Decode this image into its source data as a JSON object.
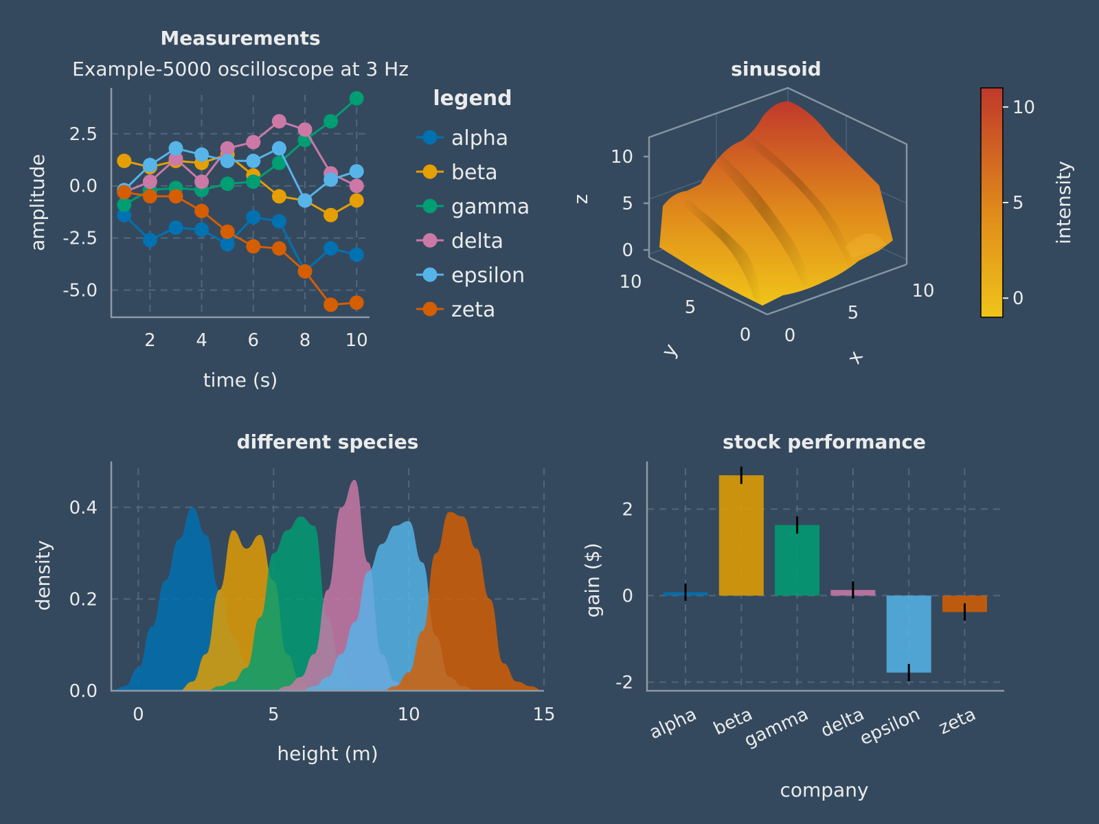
{
  "colors": {
    "background": "#34495e",
    "text": "#ebebeb",
    "palette": [
      "#0072b2",
      "#e69f00",
      "#009e73",
      "#cc79a7",
      "#56b4e9",
      "#d55e00"
    ]
  },
  "chart_data": [
    {
      "type": "line",
      "title": "Measurements",
      "subtitle": "Example-5000 oscilloscope at 3 Hz",
      "xlabel": "time (s)",
      "ylabel": "amplitude",
      "xlim": [
        0.5,
        10.5
      ],
      "ylim": [
        -6.3,
        4.7
      ],
      "xticks": [
        2,
        4,
        6,
        8,
        10
      ],
      "yticks": [
        -5.0,
        -2.5,
        0.0,
        2.5
      ],
      "ytick_labels": [
        "-5.0",
        "-2.5",
        "0.0",
        "2.5"
      ],
      "grid": true,
      "legend": {
        "title": "legend",
        "placement": "right"
      },
      "x": [
        1,
        2,
        3,
        4,
        5,
        6,
        7,
        8,
        9,
        10
      ],
      "series": [
        {
          "name": "alpha",
          "values": [
            -1.4,
            -2.6,
            -2.0,
            -2.1,
            -2.8,
            -1.5,
            -1.7,
            -4.1,
            -3.0,
            -3.3
          ]
        },
        {
          "name": "beta",
          "values": [
            1.2,
            0.9,
            1.2,
            1.1,
            1.5,
            0.5,
            -0.5,
            -0.7,
            -1.4,
            -0.7
          ]
        },
        {
          "name": "gamma",
          "values": [
            -0.9,
            -0.2,
            -0.1,
            -0.2,
            0.1,
            0.2,
            1.1,
            2.2,
            3.1,
            4.2
          ]
        },
        {
          "name": "delta",
          "values": [
            -0.3,
            0.2,
            1.3,
            0.2,
            1.8,
            2.1,
            3.1,
            2.7,
            0.6,
            0.0
          ]
        },
        {
          "name": "epsilon",
          "values": [
            -0.2,
            1.0,
            1.8,
            1.5,
            1.2,
            1.2,
            1.8,
            -0.7,
            0.3,
            0.7
          ]
        },
        {
          "name": "zeta",
          "values": [
            -0.3,
            -0.5,
            -0.5,
            -1.2,
            -2.2,
            -2.9,
            -3.0,
            -4.1,
            -5.7,
            -5.6
          ]
        }
      ]
    },
    {
      "type": "surface",
      "title": "sinusoid",
      "xlabel": "x",
      "ylabel": "y",
      "zlabel": "z",
      "xlim": [
        0,
        10
      ],
      "ylim": [
        0,
        10
      ],
      "zlim": [
        0,
        10
      ],
      "xticks": [
        0,
        5,
        10
      ],
      "yticks": [
        0,
        5,
        10
      ],
      "zticks": [
        0,
        5,
        10
      ],
      "colorbar": {
        "label": "intensity",
        "range": [
          -1,
          11
        ],
        "ticks": [
          0,
          5,
          10
        ],
        "colors": [
          "#f0c419",
          "#e08b1b",
          "#c0392b"
        ]
      }
    },
    {
      "type": "area",
      "title": "different species",
      "xlabel": "height (m)",
      "ylabel": "density",
      "xlim": [
        -1,
        15
      ],
      "ylim": [
        0,
        0.5
      ],
      "xticks": [
        0,
        5,
        10,
        15
      ],
      "yticks": [
        0.0,
        0.2,
        0.4
      ],
      "ytick_labels": [
        "0.0",
        "0.2",
        "0.4"
      ],
      "grid": true,
      "x": [
        -1,
        -0.5,
        0,
        0.5,
        1,
        1.5,
        2,
        2.5,
        3,
        3.5,
        4,
        4.5,
        5,
        5.5,
        6,
        6.5,
        7,
        7.5,
        8,
        8.5,
        9,
        9.5,
        10,
        10.5,
        11,
        11.5,
        12,
        12.5,
        13,
        13.5,
        14,
        14.5,
        15
      ],
      "series": [
        {
          "name": "alpha",
          "values": [
            0,
            0.01,
            0.05,
            0.14,
            0.24,
            0.33,
            0.4,
            0.34,
            0.22,
            0.12,
            0.06,
            0.02,
            0.01,
            0,
            0,
            0,
            0,
            0,
            0,
            0,
            0,
            0,
            0,
            0,
            0,
            0,
            0,
            0,
            0,
            0,
            0,
            0,
            0
          ]
        },
        {
          "name": "beta",
          "values": [
            0,
            0,
            0,
            0,
            0,
            0,
            0.02,
            0.08,
            0.22,
            0.35,
            0.31,
            0.34,
            0.24,
            0.08,
            0.02,
            0,
            0,
            0,
            0,
            0,
            0,
            0,
            0,
            0,
            0,
            0,
            0,
            0,
            0,
            0,
            0,
            0,
            0
          ]
        },
        {
          "name": "gamma",
          "values": [
            0,
            0,
            0,
            0,
            0,
            0,
            0,
            0,
            0.01,
            0.02,
            0.05,
            0.16,
            0.3,
            0.35,
            0.38,
            0.36,
            0.16,
            0.05,
            0.01,
            0,
            0,
            0,
            0,
            0,
            0,
            0,
            0,
            0,
            0,
            0,
            0,
            0,
            0
          ]
        },
        {
          "name": "delta",
          "values": [
            0,
            0,
            0,
            0,
            0,
            0,
            0,
            0,
            0,
            0,
            0,
            0,
            0,
            0.01,
            0.03,
            0.08,
            0.22,
            0.4,
            0.46,
            0.28,
            0.08,
            0.02,
            0,
            0,
            0,
            0,
            0,
            0,
            0,
            0,
            0,
            0,
            0
          ]
        },
        {
          "name": "epsilon",
          "values": [
            0,
            0,
            0,
            0,
            0,
            0,
            0,
            0,
            0,
            0,
            0,
            0,
            0,
            0,
            0,
            0.01,
            0.03,
            0.08,
            0.15,
            0.26,
            0.32,
            0.36,
            0.37,
            0.28,
            0.12,
            0.03,
            0.01,
            0,
            0,
            0,
            0,
            0,
            0
          ]
        },
        {
          "name": "zeta",
          "values": [
            0,
            0,
            0,
            0,
            0,
            0,
            0,
            0,
            0,
            0,
            0,
            0,
            0,
            0,
            0,
            0,
            0,
            0,
            0,
            0,
            0,
            0.01,
            0.04,
            0.13,
            0.3,
            0.39,
            0.38,
            0.31,
            0.2,
            0.06,
            0.02,
            0.01,
            0
          ]
        }
      ]
    },
    {
      "type": "bar",
      "title": "stock performance",
      "xlabel": "company",
      "ylabel": "gain ($)",
      "ylim": [
        -2.2,
        3.1
      ],
      "yticks": [
        -2,
        0,
        2
      ],
      "grid": true,
      "categories": [
        "alpha",
        "beta",
        "gamma",
        "delta",
        "epsilon",
        "zeta"
      ],
      "values": [
        0.08,
        2.78,
        1.63,
        0.13,
        -1.78,
        -0.38
      ],
      "errors": [
        0.2,
        0.2,
        0.2,
        0.2,
        0.2,
        0.2
      ]
    }
  ]
}
